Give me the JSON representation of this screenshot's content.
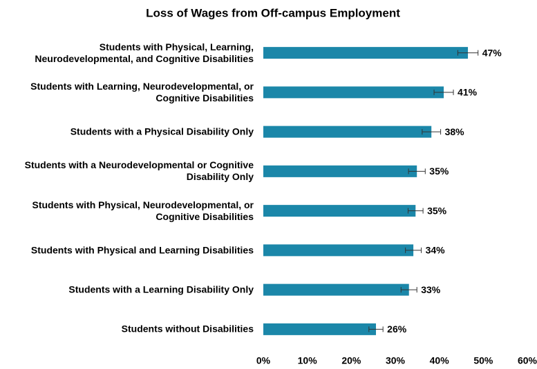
{
  "chart_data": {
    "type": "hbar",
    "title": "Loss of Wages from Off-campus Employment",
    "categories": [
      "Students with Physical, Learning, Neurodevelopmental, and Cognitive Disabilities",
      "Students with Learning, Neurodevelopmental, or Cognitive Disabilities",
      "Students with a Physical Disability Only",
      "Students with a Neurodevelopmental or Cognitive Disability Only",
      "Students with Physical, Neurodevelopmental, or Cognitive Disabilities",
      "Students with Physical and Learning Disabilities",
      "Students with a Learning Disability Only",
      "Students without Disabilities"
    ],
    "values": [
      46.5,
      41,
      38.2,
      34.9,
      34.6,
      34.1,
      33.1,
      25.6
    ],
    "value_labels": [
      "47%",
      "41%",
      "38%",
      "35%",
      "35%",
      "34%",
      "33%",
      "26%"
    ],
    "errors": [
      2.3,
      2.2,
      2.1,
      1.9,
      1.7,
      1.8,
      1.8,
      1.6
    ],
    "color": "#1b87a9",
    "xlim": [
      0,
      60
    ],
    "xticks": [
      {
        "value": 0,
        "label": "0%"
      },
      {
        "value": 10,
        "label": "10%"
      },
      {
        "value": 20,
        "label": "20%"
      },
      {
        "value": 30,
        "label": "30%"
      },
      {
        "value": 40,
        "label": "40%"
      },
      {
        "value": 50,
        "label": "50%"
      },
      {
        "value": 60,
        "label": "60%"
      }
    ],
    "grid": false
  }
}
